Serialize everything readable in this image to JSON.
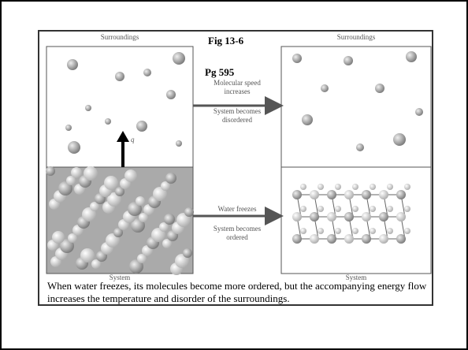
{
  "figure": {
    "surroundings_left": "Surroundings",
    "surroundings_right": "Surroundings",
    "fig_label": "Fig 13-6",
    "page_label": "Pg 595",
    "top_arrow_text": [
      "Molecular speed",
      "increases",
      "System becomes",
      "disordered"
    ],
    "heat_label": "q",
    "bottom_arrow_text": [
      "Water freezes",
      "System becomes",
      "ordered"
    ],
    "system_left": "System",
    "system_right": "System"
  },
  "caption": "When water freezes, its molecules become more ordered, but the accompanying energy flow increases the temperature and disorder of the surroundings."
}
